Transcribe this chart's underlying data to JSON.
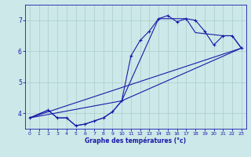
{
  "xlabel": "Graphe des températures (°c)",
  "xlim": [
    -0.5,
    23.5
  ],
  "ylim": [
    3.5,
    7.5
  ],
  "yticks": [
    4,
    5,
    6,
    7
  ],
  "xticks": [
    0,
    1,
    2,
    3,
    4,
    5,
    6,
    7,
    8,
    9,
    10,
    11,
    12,
    13,
    14,
    15,
    16,
    17,
    18,
    19,
    20,
    21,
    22,
    23
  ],
  "bg_color": "#cce8e8",
  "grid_color": "#aacccc",
  "line_color": "#1a1aaa",
  "line1_x": [
    0,
    2,
    3,
    4,
    5,
    6,
    7,
    8,
    9,
    10,
    11,
    12,
    13,
    14,
    15,
    16,
    17,
    18,
    19,
    20,
    21,
    22,
    23
  ],
  "line1_y": [
    3.85,
    4.1,
    3.85,
    3.85,
    3.6,
    3.65,
    3.75,
    3.85,
    4.05,
    4.4,
    5.85,
    6.35,
    6.65,
    7.05,
    7.15,
    6.95,
    7.05,
    7.0,
    6.65,
    6.2,
    6.5,
    6.5,
    6.1
  ],
  "line2_x": [
    0,
    2,
    3,
    4,
    5,
    6,
    7,
    8,
    9,
    10,
    23
  ],
  "line2_y": [
    3.85,
    4.1,
    3.85,
    3.85,
    3.6,
    3.65,
    3.75,
    3.85,
    4.05,
    4.4,
    6.1
  ],
  "line3_x": [
    0,
    23
  ],
  "line3_y": [
    3.85,
    6.1
  ],
  "line4_x": [
    0,
    10,
    14,
    17,
    18,
    21,
    22,
    23
  ],
  "line4_y": [
    3.85,
    4.4,
    7.05,
    7.05,
    6.6,
    6.5,
    6.5,
    6.1
  ]
}
